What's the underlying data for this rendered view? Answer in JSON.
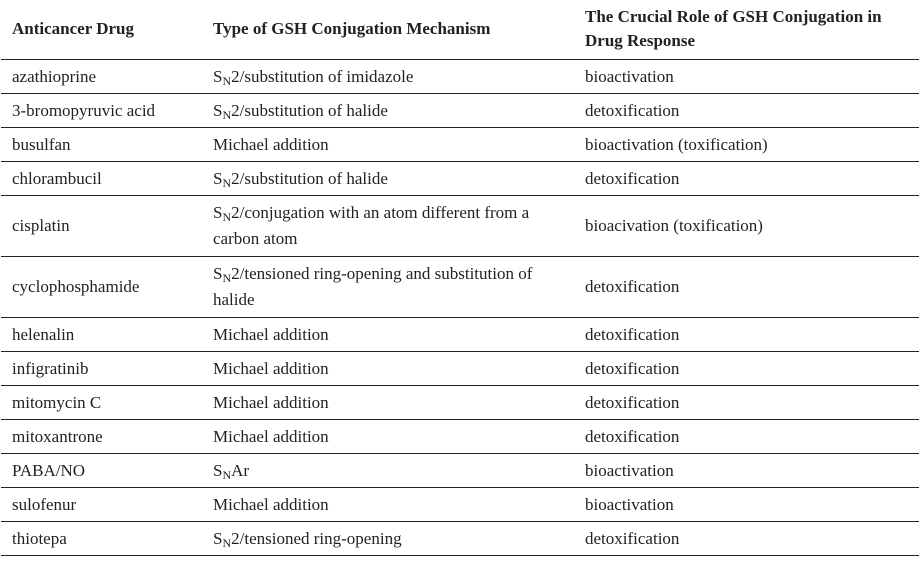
{
  "headers": [
    "Anticancer Drug",
    "Type of GSH Conjugation Mechanism",
    "The Crucial Role of GSH Conjugation in Drug Response"
  ],
  "rows": [
    {
      "drug": "azathioprine",
      "mech": {
        "pre": "S",
        "sub": "N",
        "text": "2/substitution of imidazole"
      },
      "role": "bioactivation"
    },
    {
      "drug": "3-bromopyruvic acid",
      "mech": {
        "pre": "S",
        "sub": "N",
        "text": "2/substitution of halide"
      },
      "role": "detoxification"
    },
    {
      "drug": "busulfan",
      "mech": {
        "pre": "",
        "sub": "",
        "text": "Michael addition"
      },
      "role": "bioactivation (toxification)"
    },
    {
      "drug": "chlorambucil",
      "mech": {
        "pre": "S",
        "sub": "N",
        "text": "2/substitution of halide"
      },
      "role": "detoxification"
    },
    {
      "drug": "cisplatin",
      "mech": {
        "pre": "S",
        "sub": "N",
        "text": "2/conjugation with an atom different from a carbon atom"
      },
      "role": "bioacivation (toxification)",
      "two_line": true
    },
    {
      "drug": "cyclophosphamide",
      "mech": {
        "pre": "S",
        "sub": "N",
        "text": "2/tensioned ring-opening and substitution of halide"
      },
      "role": "detoxification",
      "two_line": true
    },
    {
      "drug": "helenalin",
      "mech": {
        "pre": "",
        "sub": "",
        "text": "Michael addition"
      },
      "role": "detoxification"
    },
    {
      "drug": "infigratinib",
      "mech": {
        "pre": "",
        "sub": "",
        "text": "Michael addition"
      },
      "role": "detoxification"
    },
    {
      "drug": "mitomycin C",
      "mech": {
        "pre": "",
        "sub": "",
        "text": "Michael addition"
      },
      "role": "detoxification"
    },
    {
      "drug": "mitoxantrone",
      "mech": {
        "pre": "",
        "sub": "",
        "text": "Michael addition"
      },
      "role": "detoxification"
    },
    {
      "drug": "PABA/NO",
      "mech": {
        "pre": "S",
        "sub": "N",
        "text": "Ar"
      },
      "role": "bioactivation"
    },
    {
      "drug": "sulofenur",
      "mech": {
        "pre": "",
        "sub": "",
        "text": "Michael addition"
      },
      "role": "bioactivation"
    },
    {
      "drug": "thiotepa",
      "mech": {
        "pre": "S",
        "sub": "N",
        "text": "2/tensioned ring-opening"
      },
      "role": "detoxification"
    }
  ]
}
